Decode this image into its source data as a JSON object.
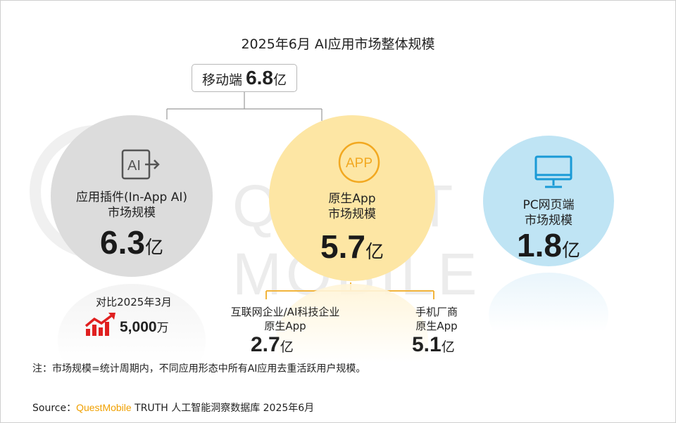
{
  "title": "2025年6月 AI应用市场整体规模",
  "watermark": "QUEST MOBILE",
  "mobile": {
    "label": "移动端",
    "value": "6.8",
    "unit": "亿"
  },
  "plugin": {
    "icon": "ai-arrow-icon",
    "icon_text": "AI",
    "label_line1": "应用插件(In-App AI)",
    "label_line2": "市场规模",
    "value": "6.3",
    "unit": "亿",
    "compare_label": "对比2025年3月",
    "growth_value": "5,000",
    "growth_unit": "万"
  },
  "native": {
    "icon": "app-circle-icon",
    "icon_text": "APP",
    "label_line1": "原生App",
    "label_line2": "市场规模",
    "value": "5.7",
    "unit": "亿",
    "sub_left": {
      "line1": "互联网企业/AI科技企业",
      "line2": "原生App",
      "value": "2.7",
      "unit": "亿"
    },
    "sub_right": {
      "line1": "手机厂商",
      "line2": "原生App",
      "value": "5.1",
      "unit": "亿"
    }
  },
  "pc": {
    "icon": "monitor-icon",
    "label_line1": "PC网页端",
    "label_line2": "市场规模",
    "value": "1.8",
    "unit": "亿"
  },
  "note": "注：市场规模=统计周期内，不同应用形态中所有AI应用去重活跃用户规模。",
  "source": {
    "prefix": "Source：",
    "brand": "QuestMobile",
    "rest": " TRUTH 人工智能洞察数据库 2025年6月"
  },
  "colors": {
    "grey": "#dcdcdc",
    "yellow": "#fde6a4",
    "blue": "#bfe4f4",
    "accent": "#f0a000",
    "arrow_red": "#e02020"
  }
}
